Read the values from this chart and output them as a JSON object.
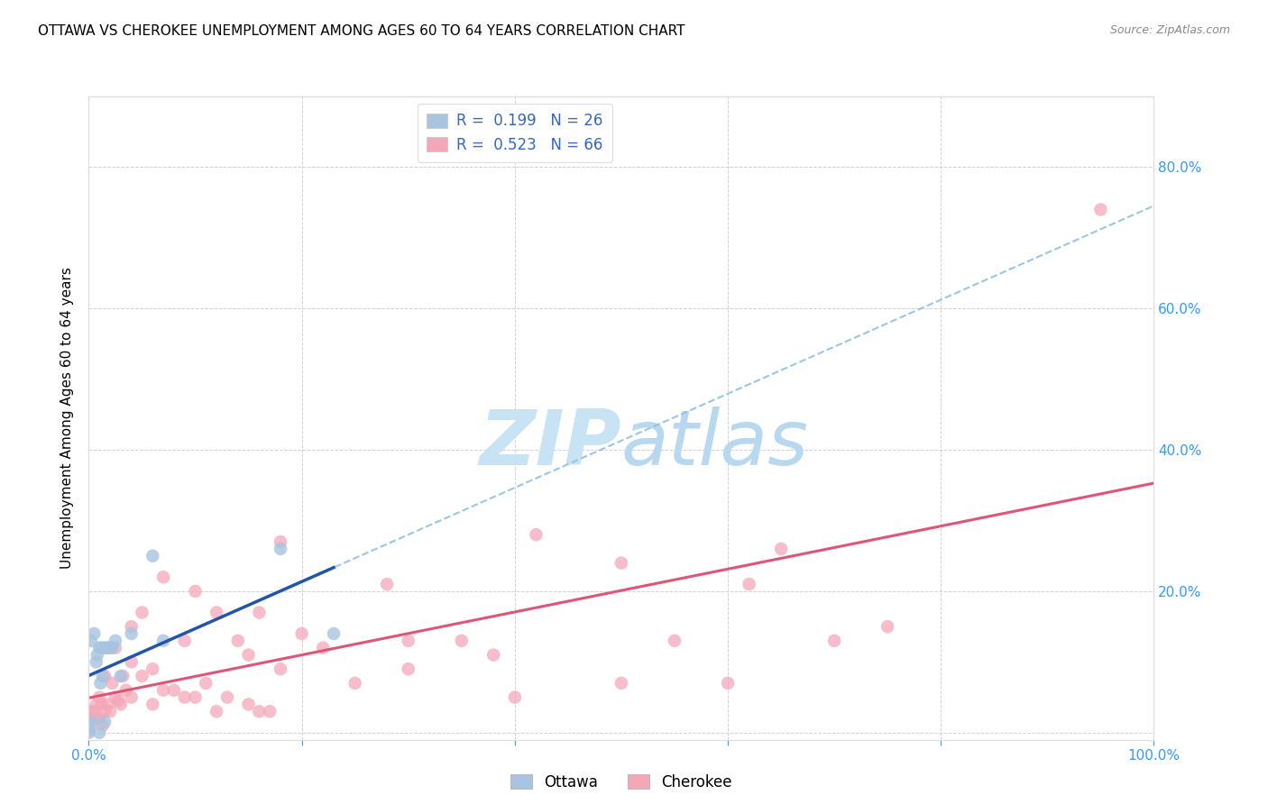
{
  "title": "OTTAWA VS CHEROKEE UNEMPLOYMENT AMONG AGES 60 TO 64 YEARS CORRELATION CHART",
  "source": "Source: ZipAtlas.com",
  "ylabel": "Unemployment Among Ages 60 to 64 years",
  "xlim": [
    0,
    1.0
  ],
  "ylim": [
    -0.01,
    0.9
  ],
  "xticks": [
    0.0,
    0.2,
    0.4,
    0.6,
    0.8,
    1.0
  ],
  "xticklabels": [
    "0.0%",
    "",
    "",
    "",
    "",
    "100.0%"
  ],
  "yticks": [
    0.0,
    0.2,
    0.4,
    0.6,
    0.8
  ],
  "yticklabels_right": [
    "",
    "20.0%",
    "40.0%",
    "60.0%",
    "80.0%"
  ],
  "ottawa_R": 0.199,
  "ottawa_N": 26,
  "cherokee_R": 0.523,
  "cherokee_N": 66,
  "ottawa_color": "#a8c4e0",
  "cherokee_color": "#f4a7b9",
  "ottawa_line_color": "#2255aa",
  "cherokee_line_color": "#e05575",
  "ottawa_dashed_color": "#90c0e0",
  "background_color": "#ffffff",
  "watermark_color": "#d8eef8",
  "grid_color": "#cccccc",
  "tick_color": "#3399ff",
  "ottawa_x": [
    0.0,
    0.0,
    0.0,
    0.002,
    0.003,
    0.005,
    0.007,
    0.008,
    0.01,
    0.01,
    0.011,
    0.012,
    0.013,
    0.015,
    0.015,
    0.017,
    0.018,
    0.02,
    0.022,
    0.025,
    0.03,
    0.04,
    0.06,
    0.07,
    0.18,
    0.23
  ],
  "ottawa_y": [
    0.0,
    0.005,
    0.01,
    0.13,
    0.015,
    0.14,
    0.1,
    0.11,
    0.0,
    0.12,
    0.07,
    0.12,
    0.08,
    0.12,
    0.015,
    0.12,
    0.12,
    0.12,
    0.12,
    0.13,
    0.08,
    0.14,
    0.25,
    0.13,
    0.26,
    0.14
  ],
  "cherokee_x": [
    0.0,
    0.0,
    0.002,
    0.005,
    0.007,
    0.008,
    0.01,
    0.01,
    0.012,
    0.013,
    0.015,
    0.015,
    0.018,
    0.02,
    0.022,
    0.025,
    0.025,
    0.028,
    0.03,
    0.032,
    0.035,
    0.04,
    0.04,
    0.04,
    0.05,
    0.05,
    0.06,
    0.06,
    0.07,
    0.07,
    0.08,
    0.09,
    0.09,
    0.1,
    0.1,
    0.11,
    0.12,
    0.12,
    0.13,
    0.14,
    0.15,
    0.15,
    0.16,
    0.16,
    0.17,
    0.18,
    0.18,
    0.2,
    0.22,
    0.25,
    0.28,
    0.3,
    0.3,
    0.35,
    0.38,
    0.4,
    0.42,
    0.5,
    0.5,
    0.55,
    0.6,
    0.62,
    0.65,
    0.7,
    0.75,
    0.95
  ],
  "cherokee_y": [
    0.003,
    0.02,
    0.03,
    0.03,
    0.04,
    0.02,
    0.02,
    0.05,
    0.04,
    0.01,
    0.03,
    0.08,
    0.04,
    0.03,
    0.07,
    0.05,
    0.12,
    0.045,
    0.04,
    0.08,
    0.06,
    0.05,
    0.1,
    0.15,
    0.08,
    0.17,
    0.04,
    0.09,
    0.06,
    0.22,
    0.06,
    0.05,
    0.13,
    0.05,
    0.2,
    0.07,
    0.03,
    0.17,
    0.05,
    0.13,
    0.04,
    0.11,
    0.03,
    0.17,
    0.03,
    0.27,
    0.09,
    0.14,
    0.12,
    0.07,
    0.21,
    0.13,
    0.09,
    0.13,
    0.11,
    0.05,
    0.28,
    0.07,
    0.24,
    0.13,
    0.07,
    0.21,
    0.26,
    0.13,
    0.15,
    0.74
  ],
  "title_fontsize": 11,
  "axis_label_fontsize": 11,
  "tick_fontsize": 11,
  "legend_fontsize": 12
}
